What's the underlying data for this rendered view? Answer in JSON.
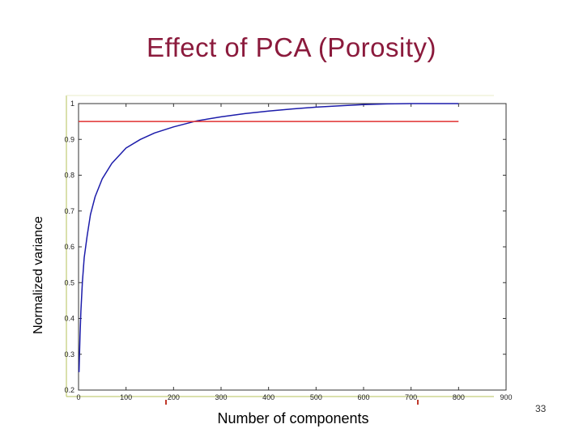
{
  "slide": {
    "title": "Effect of PCA  (Porosity)",
    "page_number": "33"
  },
  "chart_data": {
    "type": "line",
    "title": "",
    "xlabel": "Number of components",
    "ylabel": "Normalized variance",
    "xlim": [
      0,
      900
    ],
    "ylim": [
      0.2,
      1
    ],
    "xticks": [
      0,
      100,
      200,
      300,
      400,
      500,
      600,
      700,
      800,
      900
    ],
    "yticks": [
      0.2,
      0.3,
      0.4,
      0.5,
      0.6,
      0.7,
      0.8,
      0.9,
      1
    ],
    "grid": false,
    "series": [
      {
        "color": "#1c1caa",
        "x": [
          1,
          3,
          5,
          8,
          12,
          18,
          25,
          35,
          50,
          70,
          100,
          130,
          160,
          200,
          250,
          300,
          350,
          400,
          450,
          500,
          550,
          600,
          650,
          700,
          750,
          800
        ],
        "y": [
          0.25,
          0.35,
          0.42,
          0.5,
          0.57,
          0.63,
          0.69,
          0.74,
          0.79,
          0.833,
          0.876,
          0.9,
          0.918,
          0.935,
          0.952,
          0.963,
          0.972,
          0.979,
          0.985,
          0.99,
          0.994,
          0.997,
          0.999,
          1.0,
          1.0,
          1.0
        ]
      },
      {
        "color": "#e03030",
        "x": [
          0,
          800
        ],
        "y": [
          0.95,
          0.95
        ]
      }
    ]
  }
}
